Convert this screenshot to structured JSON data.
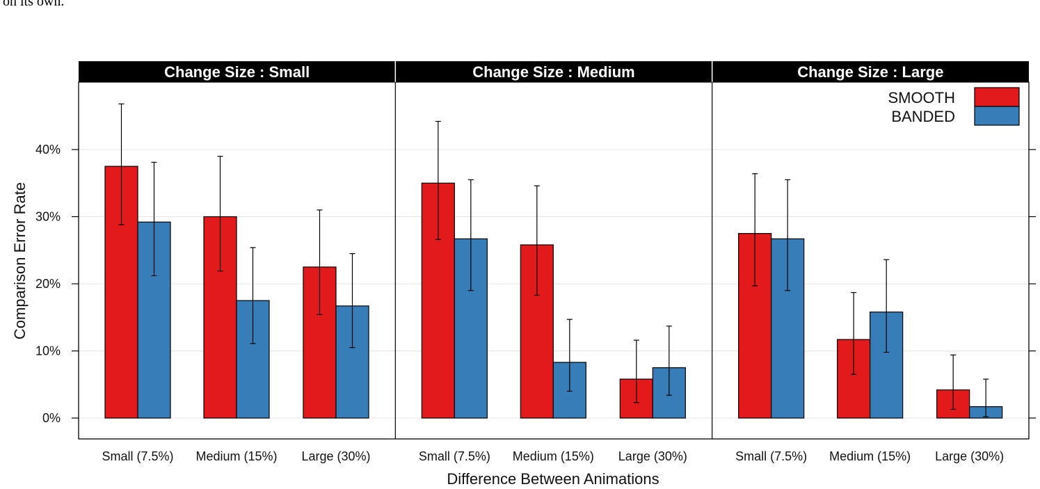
{
  "page": {
    "top_text": "on its own."
  },
  "chart_data": {
    "type": "bar",
    "xlabel": "Difference Between Animations",
    "ylabel": "Comparison Error Rate",
    "ylim": [
      0,
      0.5
    ],
    "yticks": [
      0,
      0.1,
      0.2,
      0.3,
      0.4
    ],
    "ytick_labels": [
      "0%",
      "10%",
      "20%",
      "30%",
      "40%"
    ],
    "grid": true,
    "legend_position": "top-right",
    "colors": {
      "SMOOTH": "#e31a1c",
      "BANDED": "#377eb8"
    },
    "categories": [
      "Small (7.5%)",
      "Medium (15%)",
      "Large (30%)"
    ],
    "panels": [
      {
        "title": "Change Size : Small",
        "series": [
          {
            "name": "SMOOTH",
            "values": [
              0.375,
              0.3,
              0.225
            ],
            "error_low": [
              0.288,
              0.219,
              0.154
            ],
            "error_high": [
              0.468,
              0.39,
              0.31
            ]
          },
          {
            "name": "BANDED",
            "values": [
              0.292,
              0.175,
              0.167
            ],
            "error_low": [
              0.212,
              0.111,
              0.105
            ],
            "error_high": [
              0.381,
              0.254,
              0.245
            ]
          }
        ]
      },
      {
        "title": "Change Size : Medium",
        "series": [
          {
            "name": "SMOOTH",
            "values": [
              0.35,
              0.258,
              0.058
            ],
            "error_low": [
              0.266,
              0.183,
              0.023
            ],
            "error_high": [
              0.442,
              0.346,
              0.116
            ]
          },
          {
            "name": "BANDED",
            "values": [
              0.267,
              0.083,
              0.075
            ],
            "error_low": [
              0.19,
              0.04,
              0.034
            ],
            "error_high": [
              0.355,
              0.147,
              0.137
            ]
          }
        ]
      },
      {
        "title": "Change Size : Large",
        "series": [
          {
            "name": "SMOOTH",
            "values": [
              0.275,
              0.117,
              0.042
            ],
            "error_low": [
              0.197,
              0.065,
              0.013
            ],
            "error_high": [
              0.364,
              0.187,
              0.094
            ]
          },
          {
            "name": "BANDED",
            "values": [
              0.267,
              0.158,
              0.017
            ],
            "error_low": [
              0.19,
              0.098,
              0.002
            ],
            "error_high": [
              0.355,
              0.236,
              0.058
            ]
          }
        ]
      }
    ]
  }
}
